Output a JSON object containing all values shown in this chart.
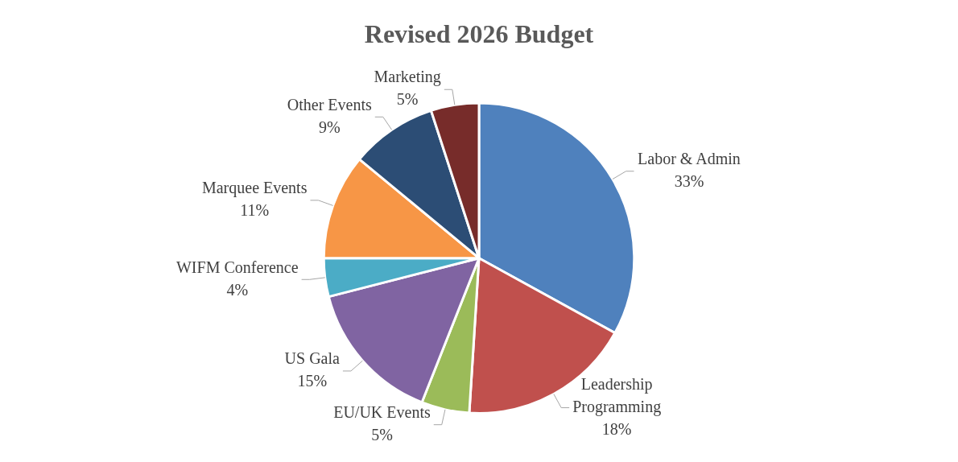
{
  "chart_data": {
    "type": "pie",
    "title": "Revised 2026 Budget",
    "categories": [
      "Labor & Admin",
      "Leadership Programming",
      "EU/UK Events",
      "US Gala",
      "WIFM Conference",
      "Marquee Events",
      "Other Events",
      "Marketing"
    ],
    "values": [
      33,
      18,
      5,
      15,
      4,
      11,
      9,
      5
    ],
    "value_labels": [
      "33%",
      "18%",
      "5%",
      "15%",
      "4%",
      "11%",
      "9%",
      "5%"
    ],
    "colors": [
      "#4f81bd",
      "#c0504d",
      "#9bbb59",
      "#8064a2",
      "#4bacc6",
      "#f79646",
      "#2c4d75",
      "#772c2a"
    ],
    "legend": false
  }
}
